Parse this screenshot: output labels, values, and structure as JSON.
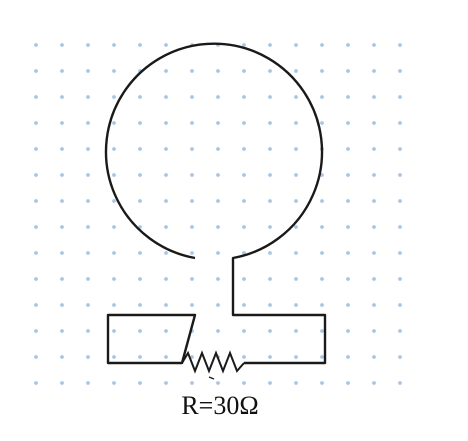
{
  "figure": {
    "resistor_label": "R=30Ω",
    "grid_color": "#a9c6e6",
    "wire_color": "#1a1a1a"
  }
}
